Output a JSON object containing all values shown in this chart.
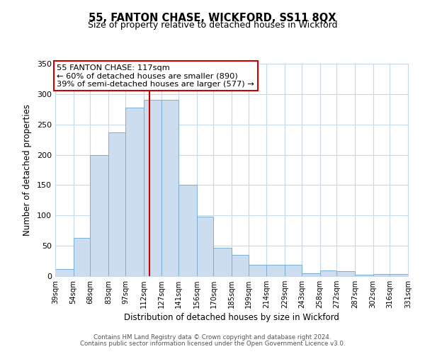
{
  "title": "55, FANTON CHASE, WICKFORD, SS11 8QX",
  "subtitle": "Size of property relative to detached houses in Wickford",
  "xlabel": "Distribution of detached houses by size in Wickford",
  "ylabel": "Number of detached properties",
  "bins": [
    39,
    54,
    68,
    83,
    97,
    112,
    127,
    141,
    156,
    170,
    185,
    199,
    214,
    229,
    243,
    258,
    272,
    287,
    302,
    316,
    331
  ],
  "counts": [
    12,
    63,
    200,
    237,
    278,
    291,
    291,
    150,
    98,
    47,
    35,
    19,
    19,
    19,
    5,
    9,
    8,
    2,
    4,
    4
  ],
  "bar_facecolor": "#ccddf0",
  "bar_edgecolor": "#7bafd4",
  "vline_x": 117,
  "vline_color": "#cc0000",
  "annotation_box_edgecolor": "#cc0000",
  "annotation_lines": [
    "55 FANTON CHASE: 117sqm",
    "← 60% of detached houses are smaller (890)",
    "39% of semi-detached houses are larger (577) →"
  ],
  "ylim": [
    0,
    350
  ],
  "yticks": [
    0,
    50,
    100,
    150,
    200,
    250,
    300,
    350
  ],
  "tick_labels": [
    "39sqm",
    "54sqm",
    "68sqm",
    "83sqm",
    "97sqm",
    "112sqm",
    "127sqm",
    "141sqm",
    "156sqm",
    "170sqm",
    "185sqm",
    "199sqm",
    "214sqm",
    "229sqm",
    "243sqm",
    "258sqm",
    "272sqm",
    "287sqm",
    "302sqm",
    "316sqm",
    "331sqm"
  ],
  "footer1": "Contains HM Land Registry data © Crown copyright and database right 2024.",
  "footer2": "Contains public sector information licensed under the Open Government Licence v3.0.",
  "background_color": "#ffffff",
  "grid_color": "#c8d8e8"
}
